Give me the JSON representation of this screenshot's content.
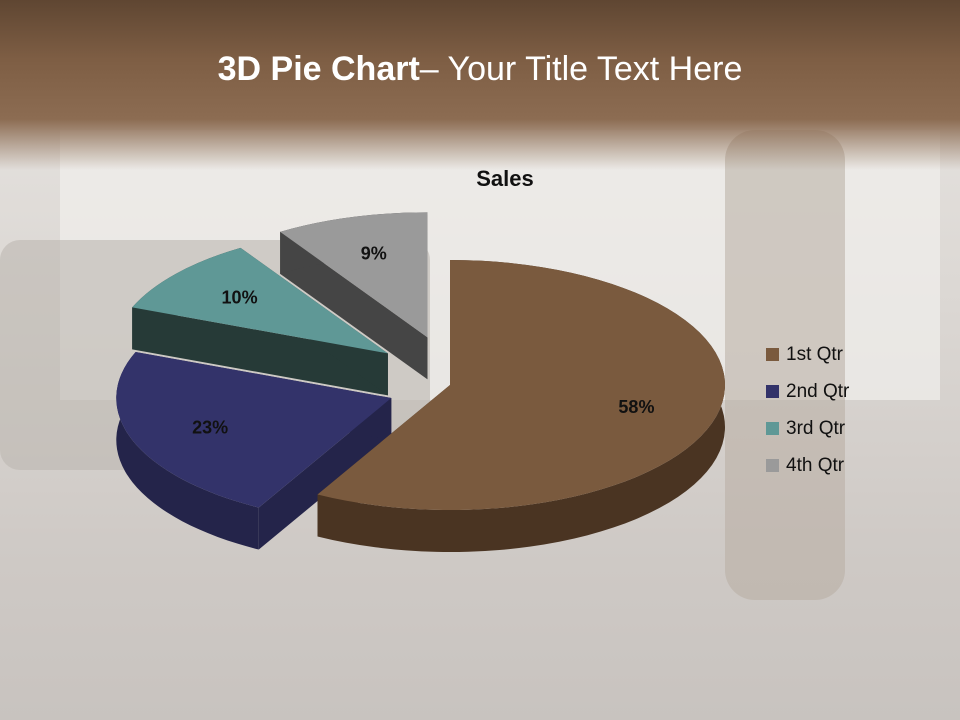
{
  "slide": {
    "title_bold": "3D Pie Chart",
    "title_rest": "– Your Title Text Here"
  },
  "chart_data": {
    "type": "pie",
    "style": "3d-exploded",
    "title": "Sales",
    "categories": [
      "1st Qtr",
      "2nd Qtr",
      "3rd Qtr",
      "4th Qtr"
    ],
    "values": [
      58,
      23,
      10,
      9
    ],
    "data_labels": [
      "58%",
      "23%",
      "10%",
      "9%"
    ],
    "colors": [
      "#7a5a3e",
      "#33336a",
      "#5f9896",
      "#9a9a9a"
    ],
    "side_colors": [
      "#4a3422",
      "#24244a",
      "#263a37",
      "#454545"
    ],
    "legend_position": "right"
  }
}
